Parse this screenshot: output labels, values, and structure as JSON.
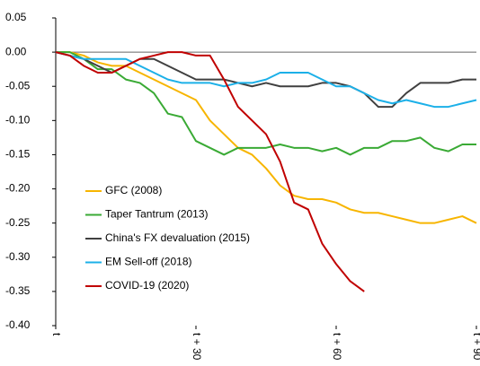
{
  "chart_data": {
    "type": "line",
    "x": [
      0,
      3,
      6,
      9,
      12,
      15,
      18,
      21,
      24,
      27,
      30,
      33,
      36,
      39,
      42,
      45,
      48,
      51,
      54,
      57,
      60,
      63,
      66,
      69,
      72,
      75,
      78,
      81,
      84,
      87,
      90
    ],
    "xlim": [
      0,
      90
    ],
    "xticks": [
      {
        "value": 0,
        "label": "t"
      },
      {
        "value": 30,
        "label": "t + 30"
      },
      {
        "value": 60,
        "label": "t + 60"
      },
      {
        "value": 90,
        "label": "t + 90"
      }
    ],
    "ylim": [
      -0.4,
      0.05
    ],
    "yticks": [
      {
        "value": -0.4,
        "label": "-0.40"
      },
      -0.35,
      {
        "value": -0.3,
        "label": "-0.30"
      },
      -0.25,
      {
        "value": -0.2,
        "label": "-0.20"
      },
      -0.15,
      {
        "value": -0.1,
        "label": "-0.10"
      },
      -0.05,
      {
        "value": 0,
        "label": "0.00"
      },
      0.05
    ],
    "legend": "lower left",
    "series": [
      {
        "name": "GFC (2008)",
        "color": "#f7b500",
        "values": [
          0,
          0,
          -0.005,
          -0.015,
          -0.02,
          -0.02,
          -0.03,
          -0.04,
          -0.05,
          -0.06,
          -0.07,
          -0.1,
          -0.12,
          -0.14,
          -0.15,
          -0.17,
          -0.195,
          -0.21,
          -0.215,
          -0.215,
          -0.22,
          -0.23,
          -0.235,
          -0.235,
          -0.24,
          -0.245,
          -0.25,
          -0.25,
          -0.245,
          -0.24,
          -0.25
        ]
      },
      {
        "name": "Taper Tantrum (2013)",
        "color": "#3aaa35",
        "values": [
          0,
          0,
          -0.01,
          -0.025,
          -0.025,
          -0.04,
          -0.045,
          -0.06,
          -0.09,
          -0.095,
          -0.13,
          -0.14,
          -0.15,
          -0.14,
          -0.14,
          -0.14,
          -0.135,
          -0.14,
          -0.14,
          -0.145,
          -0.14,
          -0.15,
          -0.14,
          -0.14,
          -0.13,
          -0.13,
          -0.125,
          -0.14,
          -0.145,
          -0.135,
          -0.135
        ]
      },
      {
        "name": "China's FX devaluation (2015)",
        "color": "#404040",
        "values": [
          0,
          -0.005,
          -0.01,
          -0.02,
          -0.03,
          -0.02,
          -0.01,
          -0.01,
          -0.02,
          -0.03,
          -0.04,
          -0.04,
          -0.04,
          -0.045,
          -0.05,
          -0.045,
          -0.05,
          -0.05,
          -0.05,
          -0.045,
          -0.045,
          -0.05,
          -0.06,
          -0.08,
          -0.08,
          -0.06,
          -0.045,
          -0.045,
          -0.045,
          -0.04,
          -0.04
        ]
      },
      {
        "name": "EM Sell-off (2018)",
        "color": "#1cb0e8",
        "values": [
          0,
          -0.005,
          -0.01,
          -0.01,
          -0.01,
          -0.01,
          -0.02,
          -0.03,
          -0.04,
          -0.045,
          -0.045,
          -0.045,
          -0.05,
          -0.045,
          -0.045,
          -0.04,
          -0.03,
          -0.03,
          -0.03,
          -0.04,
          -0.05,
          -0.05,
          -0.06,
          -0.07,
          -0.075,
          -0.07,
          -0.075,
          -0.08,
          -0.08,
          -0.075,
          -0.07
        ]
      },
      {
        "name": "COVID-19 (2020)",
        "color": "#c00000",
        "values": [
          0,
          -0.005,
          -0.02,
          -0.03,
          -0.03,
          -0.02,
          -0.01,
          -0.005,
          0,
          0,
          -0.005,
          -0.005,
          -0.04,
          -0.08,
          -0.1,
          -0.12,
          -0.16,
          -0.22,
          -0.23,
          -0.28,
          -0.31,
          -0.335,
          -0.35,
          null,
          null,
          null,
          null,
          null,
          null,
          null,
          null
        ]
      }
    ]
  }
}
